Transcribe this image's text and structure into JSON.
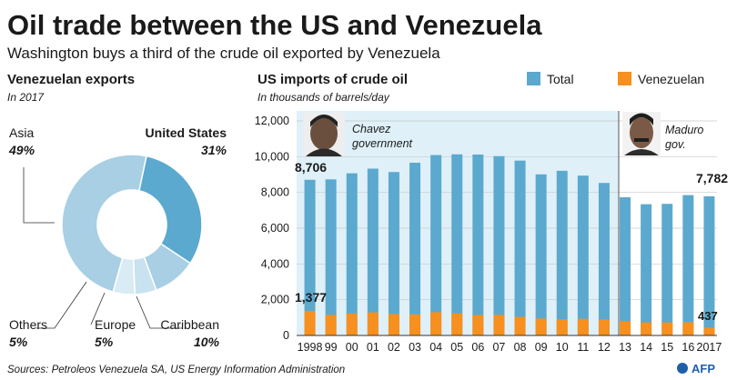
{
  "header": {
    "title": "Oil trade between the US and Venezuela",
    "subtitle": "Washington buys a third of  the crude oil exported by Venezuela"
  },
  "colors": {
    "total": "#5ba9cf",
    "venezuelan": "#f7901e",
    "chavez_bg": "#dff0f8",
    "donut": [
      "#a8cfe4",
      "#5ba9cf",
      "#a8cfe4",
      "#c8e2ef",
      "#d9ebf4"
    ]
  },
  "chart_data": [
    {
      "type": "pie",
      "title": "Venezuelan exports",
      "subtitle": "In 2017",
      "categories": [
        "Asia",
        "United States",
        "Caribbean",
        "Europe",
        "Others"
      ],
      "values": [
        49,
        31,
        10,
        5,
        5
      ],
      "value_labels": [
        "49%",
        "31%",
        "10%",
        "5%",
        "5%"
      ]
    },
    {
      "type": "bar",
      "title": "US imports of crude oil",
      "subtitle": "In thousands of barrels/day",
      "categories": [
        "1998",
        "99",
        "00",
        "01",
        "02",
        "03",
        "04",
        "05",
        "06",
        "07",
        "08",
        "09",
        "10",
        "11",
        "12",
        "13",
        "14",
        "15",
        "16",
        "2017"
      ],
      "series": [
        {
          "name": "Total",
          "values": [
            8706,
            8730,
            9070,
            9330,
            9140,
            9660,
            10090,
            10130,
            10120,
            10030,
            9780,
            9010,
            9210,
            8940,
            8530,
            7730,
            7340,
            7360,
            7850,
            7782
          ]
        },
        {
          "name": "Venezuelan",
          "values": [
            1377,
            1150,
            1230,
            1290,
            1200,
            1180,
            1300,
            1240,
            1140,
            1150,
            1040,
            950,
            910,
            930,
            900,
            800,
            730,
            730,
            740,
            437
          ]
        }
      ],
      "yticks": [
        "0",
        "2,000",
        "4,000",
        "6,000",
        "8,000",
        "10,000",
        "12,000"
      ],
      "ylim": [
        0,
        12000
      ],
      "value_labels": {
        "first_total": "8,706",
        "first_venezuelan": "1,377",
        "last_total": "7,782",
        "last_venezuelan": "437"
      },
      "periods": [
        {
          "label_line1": "Chavez",
          "label_line2": "government",
          "from": "1998",
          "to": "12",
          "icon": "chavez-portrait-icon"
        },
        {
          "label_line1": "Maduro",
          "label_line2": "gov.",
          "from": "13",
          "to": "2017",
          "icon": "maduro-portrait-icon"
        }
      ],
      "legend": [
        "Total",
        "Venezuelan"
      ],
      "legend_position": "top-right"
    }
  ],
  "footer": {
    "sources": "Sources: Petroleos Venezuela SA, US Energy Information Administration",
    "logo": "AFP"
  }
}
